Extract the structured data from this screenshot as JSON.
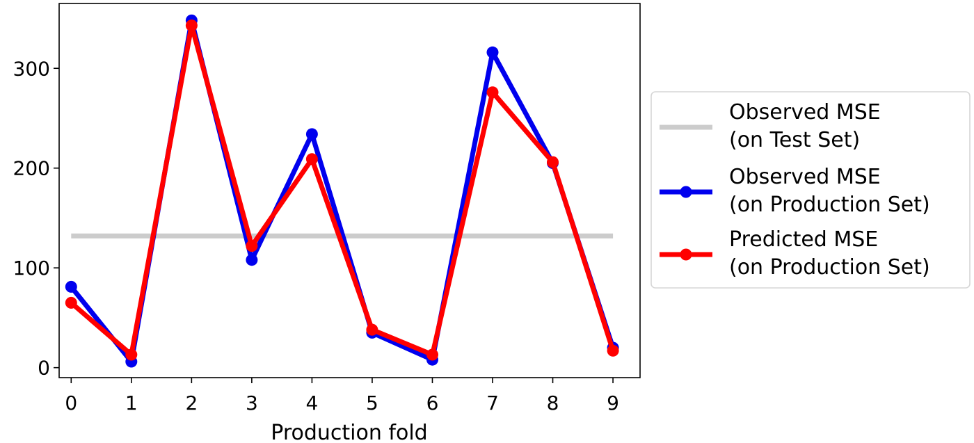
{
  "chart_data": {
    "type": "line",
    "title": "",
    "xlabel": "Production fold",
    "ylabel": "",
    "x": [
      0,
      1,
      2,
      3,
      4,
      5,
      6,
      7,
      8,
      9
    ],
    "xticks": [
      "0",
      "1",
      "2",
      "3",
      "4",
      "5",
      "6",
      "7",
      "8",
      "9"
    ],
    "yticks": [
      "0",
      "100",
      "200",
      "300"
    ],
    "xlim": [
      -0.2,
      9.45
    ],
    "ylim": [
      -10,
      365
    ],
    "grid": false,
    "legend_position": "outside-right",
    "series": [
      {
        "key": "observed_test",
        "legend_lines": [
          "Observed MSE",
          "(on Test Set)"
        ],
        "color": "#cccccc",
        "markers": false,
        "values": [
          132,
          132,
          132,
          132,
          132,
          132,
          132,
          132,
          132,
          132
        ]
      },
      {
        "key": "observed_production",
        "legend_lines": [
          "Observed MSE",
          "(on Production Set)"
        ],
        "color": "#0000ee",
        "markers": true,
        "values": [
          81,
          6,
          348,
          108,
          234,
          35,
          8,
          316,
          205,
          20
        ]
      },
      {
        "key": "predicted_production",
        "legend_lines": [
          "Predicted MSE",
          "(on Production Set)"
        ],
        "color": "#ff0000",
        "markers": true,
        "values": [
          65,
          13,
          343,
          122,
          209,
          38,
          13,
          276,
          206,
          17
        ]
      }
    ]
  }
}
